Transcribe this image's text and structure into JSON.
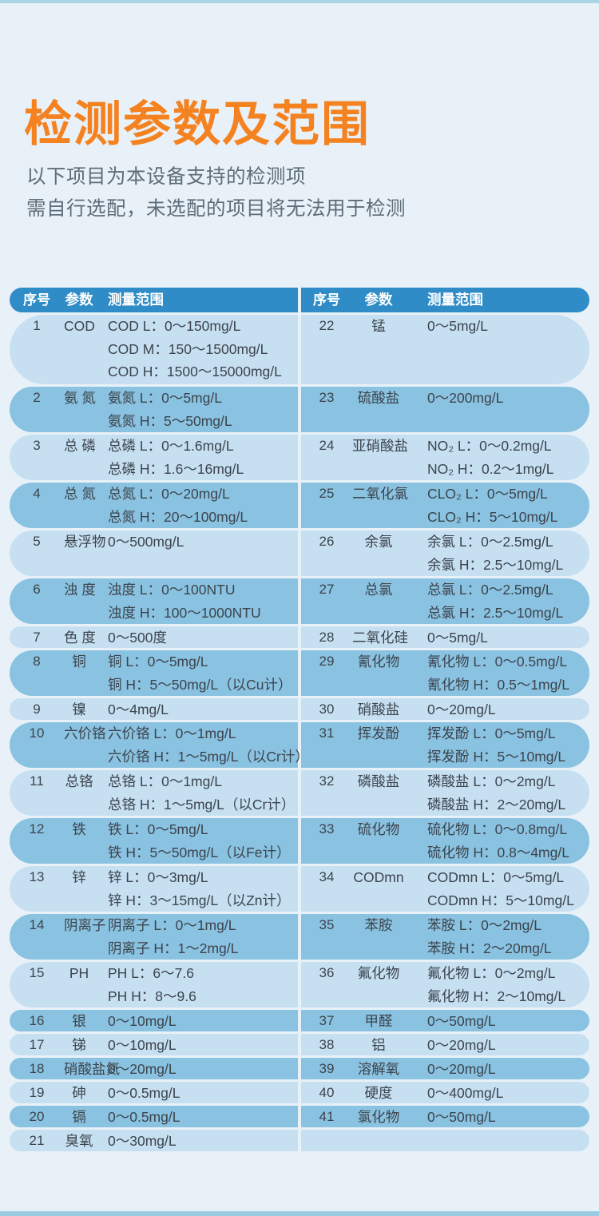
{
  "header": {
    "title": "检测参数及范围",
    "subtitle_line1": "以下项目为本设备支持的检测项",
    "subtitle_line2": "需自行选配，未选配的项目将无法用于检测"
  },
  "colors": {
    "title_orange": "#F58220",
    "table_header_blue": "#2F8CC6",
    "row_light_blue": "#C6E0F2",
    "row_dark_blue": "#8AC2E1",
    "page_background": "#E8F1F8",
    "edge_strip_blue": "#ABD4E7"
  },
  "table_headers": {
    "index": "序号",
    "parameter": "参数",
    "range": "测量范围"
  },
  "left_table": {
    "rows": [
      {
        "no": "1",
        "param": "COD",
        "span": 3,
        "lines": [
          "COD L：0～150mg/L",
          "COD M：150～1500mg/L",
          "COD H：1500～15000mg/L"
        ]
      },
      {
        "no": "2",
        "param": "氨 氮",
        "span": 2,
        "lines": [
          "氨氮 L：0～5mg/L",
          "氨氮 H：5～50mg/L"
        ]
      },
      {
        "no": "3",
        "param": "总 磷",
        "span": 2,
        "lines": [
          "总磷 L：0～1.6mg/L",
          "总磷 H：1.6～16mg/L"
        ]
      },
      {
        "no": "4",
        "param": "总 氮",
        "span": 2,
        "lines": [
          "总氮 L：0～20mg/L",
          "总氮 H：20～100mg/L"
        ]
      },
      {
        "no": "5",
        "param": "悬浮物",
        "span": 2,
        "lines": [
          "0～500mg/L"
        ]
      },
      {
        "no": "6",
        "param": "浊 度",
        "span": 2,
        "lines": [
          "浊度 L：0～100NTU",
          "浊度 H：100～1000NTU"
        ]
      },
      {
        "no": "7",
        "param": "色 度",
        "span": 1,
        "lines": [
          "0～500度"
        ]
      },
      {
        "no": "8",
        "param": "铜",
        "span": 2,
        "lines": [
          "铜 L：0～5mg/L",
          "铜 H：5～50mg/L（以Cu计）"
        ]
      },
      {
        "no": "9",
        "param": "镍",
        "span": 1,
        "lines": [
          "0～4mg/L"
        ]
      },
      {
        "no": "10",
        "param": "六价铬",
        "span": 2,
        "lines": [
          "六价铬 L：0～1mg/L",
          "六价铬 H：1～5mg/L（以Cr计）"
        ]
      },
      {
        "no": "11",
        "param": "总铬",
        "span": 2,
        "lines": [
          "总铬 L：0～1mg/L",
          "总铬 H：1～5mg/L（以Cr计）"
        ]
      },
      {
        "no": "12",
        "param": "铁",
        "span": 2,
        "lines": [
          "铁 L：0～5mg/L",
          "铁 H：5～50mg/L（以Fe计）"
        ]
      },
      {
        "no": "13",
        "param": "锌",
        "span": 2,
        "lines": [
          "锌 L：0～3mg/L",
          "锌 H：3～15mg/L（以Zn计）"
        ]
      },
      {
        "no": "14",
        "param": "阴离子",
        "span": 2,
        "lines": [
          "阴离子 L：0～1mg/L",
          "阴离子 H：1～2mg/L"
        ]
      },
      {
        "no": "15",
        "param": "PH",
        "span": 2,
        "lines": [
          "PH L：6～7.6",
          "PH H：8～9.6"
        ]
      },
      {
        "no": "16",
        "param": "银",
        "span": 1,
        "lines": [
          "0～10mg/L"
        ]
      },
      {
        "no": "17",
        "param": "锑",
        "span": 1,
        "lines": [
          "0～10mg/L"
        ]
      },
      {
        "no": "18",
        "param": "硝酸盐氮",
        "span": 1,
        "lines": [
          "0～20mg/L"
        ]
      },
      {
        "no": "19",
        "param": "砷",
        "span": 1,
        "lines": [
          "0～0.5mg/L"
        ]
      },
      {
        "no": "20",
        "param": "镉",
        "span": 1,
        "lines": [
          "0～0.5mg/L"
        ]
      },
      {
        "no": "21",
        "param": "臭氧",
        "span": 1,
        "lines": [
          "0～30mg/L"
        ]
      }
    ]
  },
  "right_table": {
    "rows": [
      {
        "no": "22",
        "param": "锰",
        "span": 3,
        "lines": [
          "0～5mg/L"
        ]
      },
      {
        "no": "23",
        "param": "硫酸盐",
        "span": 2,
        "lines": [
          "0～200mg/L"
        ]
      },
      {
        "no": "24",
        "param": "亚硝酸盐",
        "span": 2,
        "lines": [
          "NO₂ L：0～0.2mg/L",
          "NO₂ H：0.2～1mg/L"
        ]
      },
      {
        "no": "25",
        "param": "二氧化氯",
        "span": 2,
        "lines": [
          "CLO₂ L：0～5mg/L",
          "CLO₂ H：5～10mg/L"
        ]
      },
      {
        "no": "26",
        "param": "余氯",
        "span": 2,
        "lines": [
          "余氯 L：0～2.5mg/L",
          "余氯 H：2.5～10mg/L"
        ]
      },
      {
        "no": "27",
        "param": "总氯",
        "span": 2,
        "lines": [
          "总氯 L：0～2.5mg/L",
          "总氯 H：2.5～10mg/L"
        ]
      },
      {
        "no": "28",
        "param": "二氧化硅",
        "span": 1,
        "lines": [
          "0～5mg/L"
        ]
      },
      {
        "no": "29",
        "param": "氰化物",
        "span": 2,
        "lines": [
          "氰化物 L：0～0.5mg/L",
          "氰化物 H：0.5～1mg/L"
        ]
      },
      {
        "no": "30",
        "param": "硝酸盐",
        "span": 1,
        "lines": [
          "0～20mg/L"
        ]
      },
      {
        "no": "31",
        "param": "挥发酚",
        "span": 2,
        "lines": [
          "挥发酚 L：0～5mg/L",
          "挥发酚 H：5～10mg/L"
        ]
      },
      {
        "no": "32",
        "param": "磷酸盐",
        "span": 2,
        "lines": [
          "磷酸盐 L：0～2mg/L",
          "磷酸盐 H：2～20mg/L"
        ]
      },
      {
        "no": "33",
        "param": "硫化物",
        "span": 2,
        "lines": [
          "硫化物 L：0～0.8mg/L",
          "硫化物 H：0.8～4mg/L"
        ]
      },
      {
        "no": "34",
        "param": "CODmn",
        "span": 2,
        "lines": [
          "CODmn L：0～5mg/L",
          "CODmn H：5～10mg/L"
        ]
      },
      {
        "no": "35",
        "param": "苯胺",
        "span": 2,
        "lines": [
          "苯胺 L：0～2mg/L",
          "苯胺 H：2～20mg/L"
        ]
      },
      {
        "no": "36",
        "param": "氟化物",
        "span": 2,
        "lines": [
          "氟化物 L：0～2mg/L",
          "氟化物 H：2～10mg/L"
        ]
      },
      {
        "no": "37",
        "param": "甲醛",
        "span": 1,
        "lines": [
          "0～50mg/L"
        ]
      },
      {
        "no": "38",
        "param": "铝",
        "span": 1,
        "lines": [
          "0～20mg/L"
        ]
      },
      {
        "no": "39",
        "param": "溶解氧",
        "span": 1,
        "lines": [
          "0～20mg/L"
        ]
      },
      {
        "no": "40",
        "param": "硬度",
        "span": 1,
        "lines": [
          "0～400mg/L"
        ]
      },
      {
        "no": "41",
        "param": "氯化物",
        "span": 1,
        "lines": [
          "0～50mg/L"
        ]
      },
      {
        "no": "",
        "param": "",
        "span": 1,
        "lines": []
      }
    ]
  }
}
